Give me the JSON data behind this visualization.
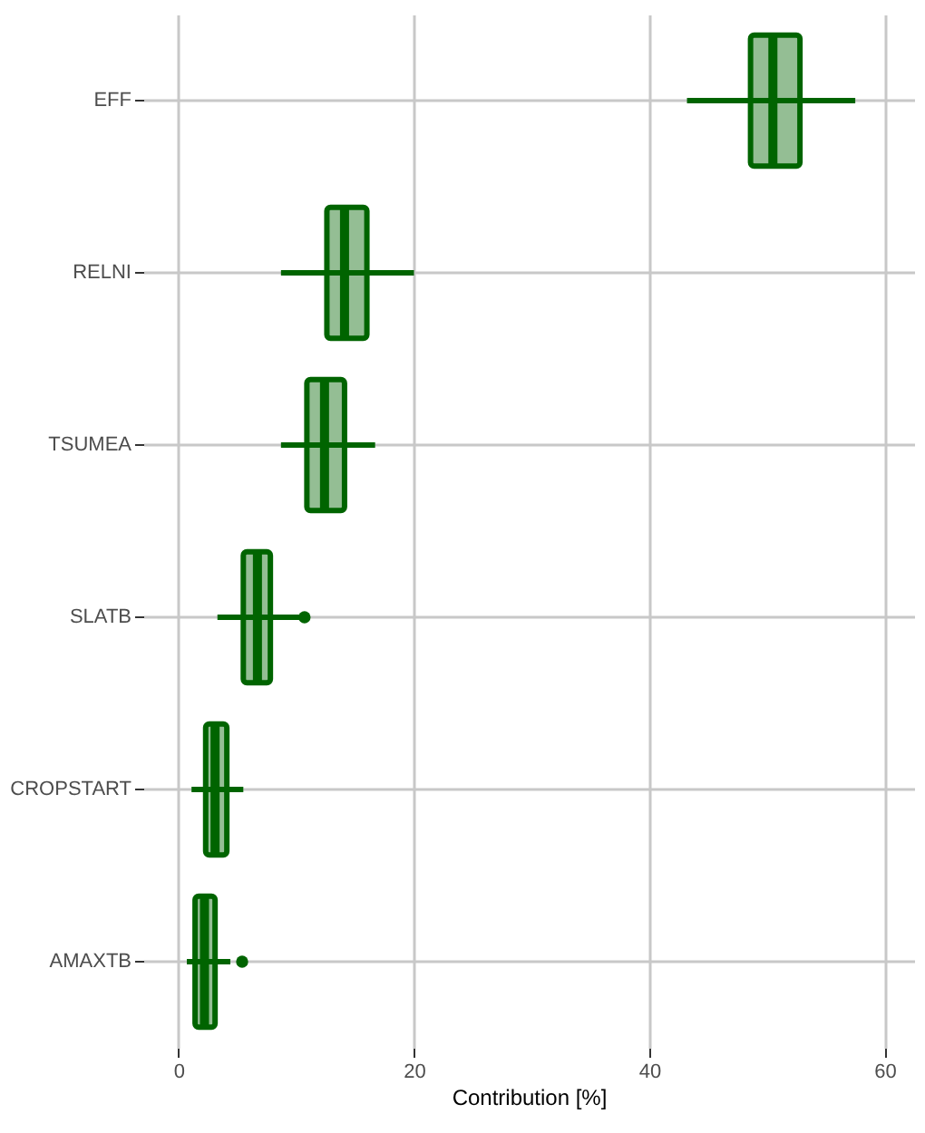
{
  "chart_data": {
    "type": "box",
    "orientation": "horizontal",
    "xlabel": "Contribution [%]",
    "categories": [
      "EFF",
      "RELNI",
      "TSUMEA",
      "SLATB",
      "CROPSTART",
      "AMAXTB"
    ],
    "series": [
      {
        "color": "#006400",
        "boxes": [
          {
            "low": 43.2,
            "q1": 48.6,
            "median": 50.5,
            "q3": 52.8,
            "high": 57.5
          },
          {
            "low": 8.7,
            "q1": 12.6,
            "median": 14.1,
            "q3": 16.0,
            "high": 20.0
          },
          {
            "low": 8.7,
            "q1": 10.9,
            "median": 12.4,
            "q3": 14.1,
            "high": 16.7
          },
          {
            "low": 3.3,
            "q1": 5.5,
            "median": 6.7,
            "q3": 7.8,
            "high": 10.3,
            "outliers": [
              10.7
            ]
          },
          {
            "low": 1.1,
            "q1": 2.3,
            "median": 3.1,
            "q3": 4.1,
            "high": 5.5
          },
          {
            "low": 0.7,
            "q1": 1.4,
            "median": 2.2,
            "q3": 3.1,
            "high": 4.4,
            "outliers": [
              5.4
            ]
          }
        ]
      }
    ],
    "xlim": [
      -3,
      62.5
    ],
    "xticks": [
      0,
      20,
      40,
      60
    ],
    "grid": true
  }
}
